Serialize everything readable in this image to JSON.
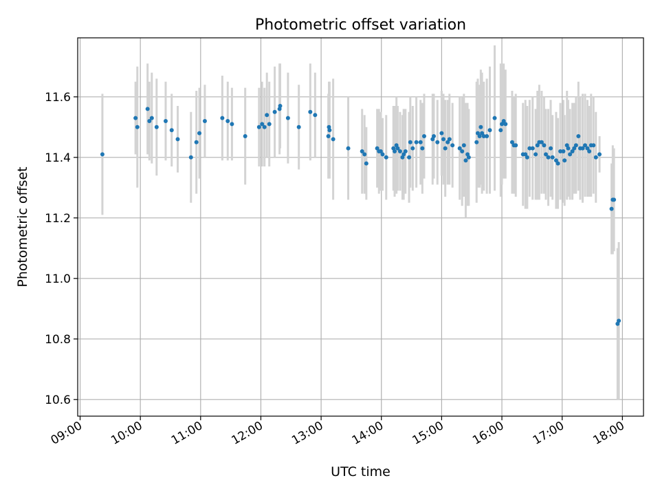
{
  "chart_data": {
    "type": "scatter",
    "title": "Photometric offset variation",
    "xlabel": "UTC time",
    "ylabel": "Photometric offset",
    "x_unit": "hours UTC",
    "xlim": [
      8.96,
      18.35
    ],
    "ylim": [
      10.545,
      11.795
    ],
    "grid": true,
    "xticks": [
      9,
      10,
      11,
      12,
      13,
      14,
      15,
      16,
      17,
      18
    ],
    "xtick_labels": [
      "09:00",
      "10:00",
      "11:00",
      "12:00",
      "13:00",
      "14:00",
      "15:00",
      "16:00",
      "17:00",
      "18:00"
    ],
    "yticks": [
      10.6,
      10.8,
      11.0,
      11.2,
      11.4,
      11.6
    ],
    "ytick_labels": [
      "10.6",
      "10.8",
      "11.0",
      "11.2",
      "11.4",
      "11.6"
    ],
    "point_color": "#1f77b4",
    "errorbar_color": "#d3d3d3",
    "series": [
      {
        "name": "Photometric offset",
        "points": [
          [
            9.37,
            11.41,
            0.2
          ],
          [
            9.92,
            11.53,
            0.12
          ],
          [
            9.95,
            11.5,
            0.2
          ],
          [
            10.12,
            11.56,
            0.15
          ],
          [
            10.15,
            11.52,
            0.13
          ],
          [
            10.19,
            11.53,
            0.15
          ],
          [
            10.27,
            11.5,
            0.16
          ],
          [
            10.42,
            11.52,
            0.13
          ],
          [
            10.52,
            11.49,
            0.12
          ],
          [
            10.62,
            11.46,
            0.11
          ],
          [
            10.84,
            11.4,
            0.15
          ],
          [
            10.93,
            11.45,
            0.17
          ],
          [
            10.98,
            11.48,
            0.15
          ],
          [
            11.07,
            11.52,
            0.12
          ],
          [
            11.36,
            11.53,
            0.14
          ],
          [
            11.45,
            11.52,
            0.13
          ],
          [
            11.52,
            11.51,
            0.12
          ],
          [
            11.74,
            11.47,
            0.16
          ],
          [
            11.97,
            11.5,
            0.13
          ],
          [
            12.02,
            11.51,
            0.14
          ],
          [
            12.06,
            11.5,
            0.13
          ],
          [
            12.1,
            11.54,
            0.14
          ],
          [
            12.14,
            11.51,
            0.14
          ],
          [
            12.23,
            11.55,
            0.15
          ],
          [
            12.31,
            11.56,
            0.15
          ],
          [
            12.32,
            11.57,
            0.14
          ],
          [
            12.45,
            11.53,
            0.15
          ],
          [
            12.63,
            11.5,
            0.14
          ],
          [
            12.82,
            11.55,
            0.16
          ],
          [
            12.9,
            11.54,
            0.14
          ],
          [
            13.12,
            11.47,
            0.14
          ],
          [
            13.13,
            11.5,
            0.15
          ],
          [
            13.14,
            11.49,
            0.16
          ],
          [
            13.2,
            11.46,
            0.2
          ],
          [
            13.45,
            11.43,
            0.17
          ],
          [
            13.68,
            11.42,
            0.14
          ],
          [
            13.72,
            11.41,
            0.13
          ],
          [
            13.75,
            11.38,
            0.12
          ],
          [
            13.93,
            11.43,
            0.13
          ],
          [
            13.96,
            11.42,
            0.14
          ],
          [
            13.99,
            11.42,
            0.13
          ],
          [
            14.02,
            11.41,
            0.12
          ],
          [
            14.08,
            11.4,
            0.14
          ],
          [
            14.2,
            11.43,
            0.14
          ],
          [
            14.22,
            11.42,
            0.15
          ],
          [
            14.25,
            11.44,
            0.16
          ],
          [
            14.27,
            11.43,
            0.14
          ],
          [
            14.31,
            11.42,
            0.13
          ],
          [
            14.35,
            11.4,
            0.14
          ],
          [
            14.37,
            11.41,
            0.15
          ],
          [
            14.4,
            11.42,
            0.14
          ],
          [
            14.46,
            11.4,
            0.15
          ],
          [
            14.48,
            11.45,
            0.15
          ],
          [
            14.52,
            11.43,
            0.14
          ],
          [
            14.58,
            11.45,
            0.15
          ],
          [
            14.65,
            11.45,
            0.14
          ],
          [
            14.68,
            11.43,
            0.15
          ],
          [
            14.71,
            11.47,
            0.14
          ],
          [
            14.85,
            11.46,
            0.15
          ],
          [
            14.87,
            11.47,
            0.14
          ],
          [
            14.93,
            11.45,
            0.14
          ],
          [
            15.0,
            11.48,
            0.14
          ],
          [
            15.03,
            11.46,
            0.15
          ],
          [
            15.06,
            11.43,
            0.16
          ],
          [
            15.1,
            11.45,
            0.14
          ],
          [
            15.13,
            11.46,
            0.15
          ],
          [
            15.18,
            11.44,
            0.14
          ],
          [
            15.3,
            11.43,
            0.17
          ],
          [
            15.34,
            11.42,
            0.18
          ],
          [
            15.37,
            11.44,
            0.17
          ],
          [
            15.4,
            11.39,
            0.19
          ],
          [
            15.43,
            11.41,
            0.17
          ],
          [
            15.45,
            11.4,
            0.16
          ],
          [
            15.58,
            11.45,
            0.2
          ],
          [
            15.6,
            11.48,
            0.18
          ],
          [
            15.63,
            11.47,
            0.17
          ],
          [
            15.65,
            11.5,
            0.19
          ],
          [
            15.67,
            11.48,
            0.2
          ],
          [
            15.7,
            11.47,
            0.18
          ],
          [
            15.75,
            11.47,
            0.19
          ],
          [
            15.8,
            11.49,
            0.21
          ],
          [
            15.88,
            11.53,
            0.24
          ],
          [
            15.98,
            11.49,
            0.22
          ],
          [
            16.0,
            11.51,
            0.2
          ],
          [
            16.03,
            11.52,
            0.19
          ],
          [
            16.06,
            11.51,
            0.18
          ],
          [
            16.17,
            11.45,
            0.17
          ],
          [
            16.2,
            11.44,
            0.16
          ],
          [
            16.23,
            11.44,
            0.17
          ],
          [
            16.35,
            11.41,
            0.17
          ],
          [
            16.39,
            11.41,
            0.18
          ],
          [
            16.42,
            11.4,
            0.17
          ],
          [
            16.46,
            11.43,
            0.16
          ],
          [
            16.51,
            11.43,
            0.17
          ],
          [
            16.56,
            11.41,
            0.15
          ],
          [
            16.59,
            11.44,
            0.18
          ],
          [
            16.62,
            11.45,
            0.19
          ],
          [
            16.66,
            11.45,
            0.17
          ],
          [
            16.7,
            11.44,
            0.16
          ],
          [
            16.73,
            11.41,
            0.15
          ],
          [
            16.77,
            11.4,
            0.16
          ],
          [
            16.81,
            11.43,
            0.16
          ],
          [
            16.84,
            11.4,
            0.14
          ],
          [
            16.9,
            11.39,
            0.16
          ],
          [
            16.93,
            11.38,
            0.15
          ],
          [
            16.97,
            11.42,
            0.16
          ],
          [
            17.02,
            11.42,
            0.17
          ],
          [
            17.04,
            11.39,
            0.15
          ],
          [
            17.08,
            11.44,
            0.18
          ],
          [
            17.1,
            11.43,
            0.16
          ],
          [
            17.13,
            11.41,
            0.15
          ],
          [
            17.17,
            11.42,
            0.16
          ],
          [
            17.2,
            11.43,
            0.15
          ],
          [
            17.23,
            11.44,
            0.16
          ],
          [
            17.27,
            11.47,
            0.18
          ],
          [
            17.3,
            11.43,
            0.17
          ],
          [
            17.34,
            11.43,
            0.18
          ],
          [
            17.38,
            11.44,
            0.17
          ],
          [
            17.42,
            11.43,
            0.16
          ],
          [
            17.45,
            11.42,
            0.15
          ],
          [
            17.48,
            11.44,
            0.17
          ],
          [
            17.52,
            11.44,
            0.16
          ],
          [
            17.56,
            11.4,
            0.15
          ],
          [
            17.62,
            11.41,
            0.06
          ],
          [
            17.82,
            11.23,
            0.15
          ],
          [
            17.84,
            11.26,
            0.18
          ],
          [
            17.86,
            11.26,
            0.17
          ],
          [
            17.92,
            10.85,
            0.25
          ],
          [
            17.94,
            10.86,
            0.26
          ]
        ]
      }
    ]
  }
}
